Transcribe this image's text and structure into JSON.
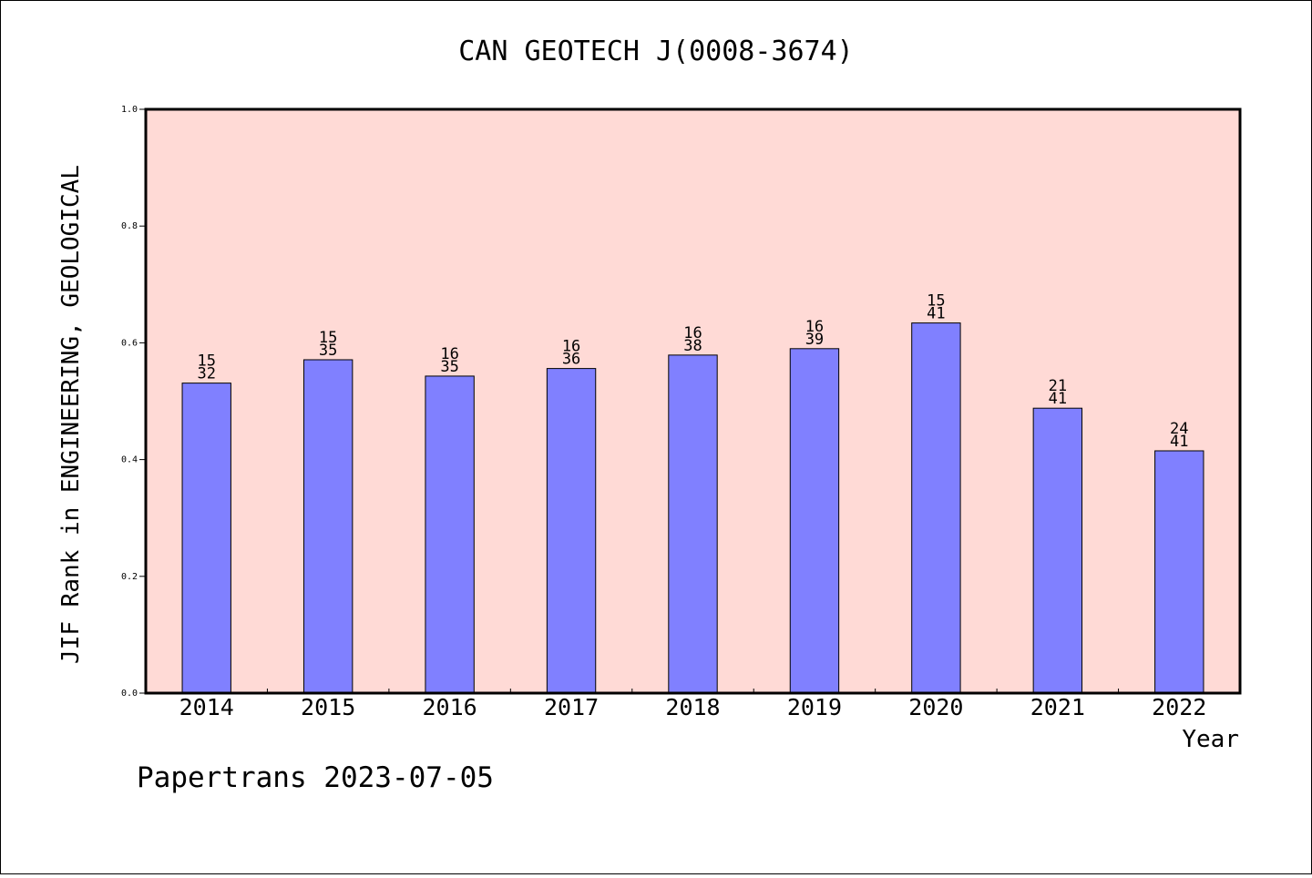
{
  "chart_data": {
    "type": "bar",
    "title": "CAN GEOTECH J(0008-3674)",
    "xlabel": "Year",
    "ylabel": "JIF Rank in ENGINEERING, GEOLOGICAL",
    "ylim": [
      0,
      1.0
    ],
    "yticks": [
      "0.0",
      "0.2",
      "0.4",
      "0.6",
      "0.8",
      "1.0"
    ],
    "grid": false,
    "categories": [
      "2014",
      "2015",
      "2016",
      "2017",
      "2018",
      "2019",
      "2020",
      "2021",
      "2022"
    ],
    "values": [
      0.531,
      0.571,
      0.543,
      0.556,
      0.579,
      0.59,
      0.634,
      0.488,
      0.415
    ],
    "rank_labels": [
      {
        "rank": "15",
        "total": "32"
      },
      {
        "rank": "15",
        "total": "35"
      },
      {
        "rank": "16",
        "total": "35"
      },
      {
        "rank": "16",
        "total": "36"
      },
      {
        "rank": "16",
        "total": "38"
      },
      {
        "rank": "16",
        "total": "39"
      },
      {
        "rank": "15",
        "total": "41"
      },
      {
        "rank": "21",
        "total": "41"
      },
      {
        "rank": "24",
        "total": "41"
      }
    ],
    "colors": {
      "plot_background": "#FFDAD6",
      "bar_fill": "#8080FF",
      "bar_stroke": "#000000"
    }
  },
  "footer": {
    "credit": "Papertrans 2023-07-05"
  }
}
